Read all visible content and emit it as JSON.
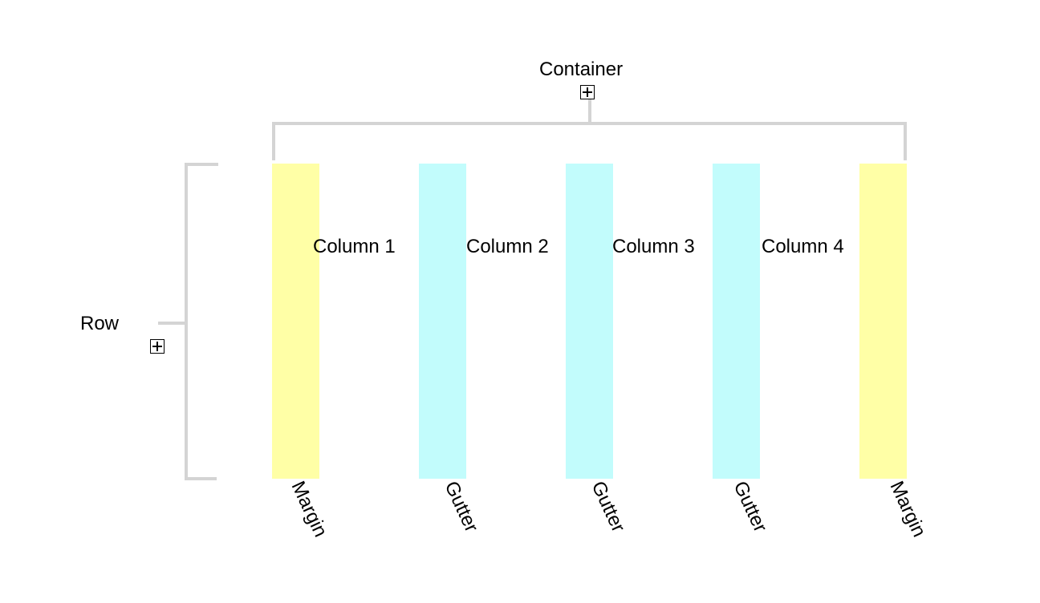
{
  "container": {
    "label": "Container"
  },
  "row": {
    "label": "Row"
  },
  "columns": [
    "Column 1",
    "Column 2",
    "Column 3",
    "Column 4"
  ],
  "strips": [
    {
      "kind": "margin",
      "label": "Margin"
    },
    {
      "kind": "gutter",
      "label": "Gutter"
    },
    {
      "kind": "gutter",
      "label": "Gutter"
    },
    {
      "kind": "gutter",
      "label": "Gutter"
    },
    {
      "kind": "margin",
      "label": "Margin"
    }
  ],
  "colors": {
    "margin": "#ffffa6",
    "gutter": "#c2fcfc",
    "bracket": "#d4d4d4"
  }
}
